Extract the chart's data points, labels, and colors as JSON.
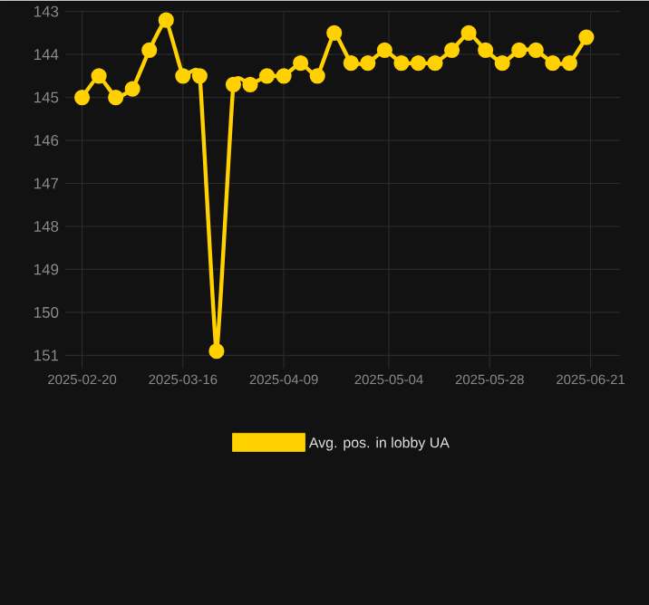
{
  "chart_data": {
    "type": "line",
    "x": [
      "2025-02-20",
      "2025-02-24",
      "2025-02-28",
      "2025-03-04",
      "2025-03-08",
      "2025-03-12",
      "2025-03-16",
      "2025-03-20",
      "2025-03-24",
      "2025-03-28",
      "2025-04-01",
      "2025-04-05",
      "2025-04-09",
      "2025-04-13",
      "2025-04-17",
      "2025-04-21",
      "2025-04-25",
      "2025-04-29",
      "2025-05-03",
      "2025-05-07",
      "2025-05-11",
      "2025-05-15",
      "2025-05-19",
      "2025-05-23",
      "2025-05-27",
      "2025-05-31",
      "2025-06-04",
      "2025-06-08",
      "2025-06-12",
      "2025-06-16",
      "2025-06-20"
    ],
    "series": [
      {
        "name": "Avg. pos. in lobby UA",
        "color": "#ffd100",
        "values": [
          145,
          144.5,
          145,
          144.8,
          143.9,
          143.2,
          144.5,
          144.5,
          150.9,
          144.7,
          144.7,
          144.5,
          144.5,
          144.2,
          144.5,
          143.5,
          144.2,
          144.2,
          143.9,
          144.2,
          144.2,
          144.2,
          143.9,
          143.5,
          143.9,
          144.2,
          143.9,
          143.9,
          144.2,
          144.2,
          143.6
        ]
      }
    ],
    "xlim": [
      "2025-02-16",
      "2025-06-28"
    ],
    "xticks": [
      "2025-02-20",
      "2025-03-16",
      "2025-04-09",
      "2025-05-04",
      "2025-05-28",
      "2025-06-21"
    ],
    "ylim": [
      151.3,
      143
    ],
    "yticks": [
      143,
      144,
      145,
      146,
      147,
      148,
      149,
      150,
      151
    ],
    "grid": true,
    "legend": "bottom",
    "marker": "circle",
    "line_style": "solid"
  }
}
